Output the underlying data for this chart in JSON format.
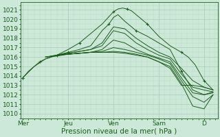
{
  "xlabel": "Pression niveau de la mer( hPa )",
  "bg_color": "#cce8d8",
  "grid_major_color": "#aaccb8",
  "grid_minor_color": "#bbddc8",
  "line_color": "#1a5c1a",
  "ylim": [
    1009.5,
    1021.8
  ],
  "yticks": [
    1010,
    1011,
    1012,
    1013,
    1014,
    1015,
    1016,
    1017,
    1018,
    1019,
    1020,
    1021
  ],
  "xlabels": [
    "Mer",
    "Jeu",
    "Ven",
    "Sam",
    "D"
  ],
  "xtick_positions": [
    0,
    2,
    4,
    6,
    8
  ],
  "xlim": [
    -0.1,
    8.6
  ],
  "lines": [
    {
      "x": [
        0.0,
        0.25,
        0.5,
        0.75,
        1.0,
        1.25,
        1.5,
        1.75,
        2.0,
        2.5,
        3.0,
        3.5,
        4.0,
        4.2,
        4.4,
        4.6,
        4.8,
        5.0,
        5.5,
        6.0,
        6.5,
        7.0,
        7.3,
        7.6,
        8.0,
        8.4
      ],
      "y": [
        1013.8,
        1014.5,
        1015.0,
        1015.5,
        1015.8,
        1016.0,
        1016.2,
        1016.5,
        1016.8,
        1017.5,
        1018.5,
        1019.5,
        1020.8,
        1021.1,
        1021.2,
        1021.1,
        1020.9,
        1020.5,
        1019.5,
        1018.2,
        1017.2,
        1016.5,
        1016.0,
        1015.2,
        1013.5,
        1012.5
      ],
      "marker": true,
      "marker_every": 3
    },
    {
      "x": [
        0.0,
        0.5,
        1.0,
        1.5,
        2.0,
        2.5,
        3.0,
        3.5,
        3.8,
        4.0,
        4.2,
        4.5,
        5.0,
        5.5,
        6.0,
        6.5,
        7.0,
        7.5,
        8.0,
        8.4
      ],
      "y": [
        1013.8,
        1015.0,
        1015.8,
        1016.2,
        1016.5,
        1016.8,
        1017.2,
        1018.8,
        1019.5,
        1020.2,
        1020.5,
        1019.8,
        1018.8,
        1018.2,
        1017.5,
        1016.8,
        1014.5,
        1012.5,
        1012.0,
        1012.3
      ],
      "marker": true,
      "marker_every": 4
    },
    {
      "x": [
        1.0,
        1.5,
        2.0,
        2.5,
        3.0,
        3.5,
        4.0,
        4.5,
        5.0,
        5.5,
        6.0,
        6.5,
        7.0,
        7.5,
        8.0,
        8.4
      ],
      "y": [
        1016.0,
        1016.2,
        1016.4,
        1016.6,
        1016.8,
        1017.5,
        1019.2,
        1019.0,
        1018.0,
        1017.2,
        1016.5,
        1016.0,
        1014.8,
        1013.5,
        1012.8,
        1012.5
      ],
      "marker": false
    },
    {
      "x": [
        1.0,
        1.5,
        2.0,
        2.5,
        3.0,
        3.5,
        4.0,
        4.5,
        5.0,
        5.5,
        6.0,
        6.5,
        7.0,
        7.5,
        8.0,
        8.4
      ],
      "y": [
        1016.0,
        1016.2,
        1016.4,
        1016.6,
        1016.8,
        1017.2,
        1018.8,
        1018.5,
        1017.5,
        1016.8,
        1016.2,
        1015.8,
        1014.2,
        1012.8,
        1012.5,
        1012.3
      ],
      "marker": false
    },
    {
      "x": [
        1.0,
        1.5,
        2.0,
        2.5,
        3.0,
        3.5,
        4.0,
        4.5,
        5.0,
        5.5,
        6.0,
        6.5,
        7.0,
        7.5,
        8.0,
        8.4
      ],
      "y": [
        1016.0,
        1016.1,
        1016.3,
        1016.4,
        1016.5,
        1016.8,
        1017.8,
        1017.5,
        1016.8,
        1016.3,
        1015.9,
        1015.5,
        1013.8,
        1012.2,
        1012.0,
        1012.2
      ],
      "marker": false
    },
    {
      "x": [
        1.5,
        2.0,
        2.5,
        3.0,
        3.5,
        4.0,
        4.5,
        5.0,
        5.5,
        6.0,
        6.5,
        7.0,
        7.5,
        8.0,
        8.4
      ],
      "y": [
        1016.2,
        1016.3,
        1016.4,
        1016.5,
        1016.6,
        1017.0,
        1016.8,
        1016.5,
        1016.2,
        1015.8,
        1015.3,
        1013.5,
        1011.8,
        1011.2,
        1012.0
      ],
      "marker": false
    },
    {
      "x": [
        1.5,
        2.0,
        2.5,
        3.0,
        3.5,
        4.0,
        4.5,
        5.0,
        5.5,
        6.0,
        6.5,
        7.0,
        7.5,
        8.0,
        8.4
      ],
      "y": [
        1016.2,
        1016.3,
        1016.4,
        1016.5,
        1016.5,
        1016.6,
        1016.5,
        1016.3,
        1016.0,
        1015.5,
        1015.0,
        1013.2,
        1010.8,
        1010.5,
        1012.0
      ],
      "marker": false
    },
    {
      "x": [
        1.5,
        2.0,
        2.5,
        3.0,
        3.5,
        4.0,
        4.5,
        5.0,
        5.5,
        6.0,
        6.5,
        7.0,
        7.5,
        8.0,
        8.4
      ],
      "y": [
        1016.2,
        1016.3,
        1016.4,
        1016.5,
        1016.5,
        1016.5,
        1016.4,
        1016.2,
        1016.0,
        1015.5,
        1014.8,
        1013.0,
        1013.0,
        1012.8,
        1012.5
      ],
      "marker": false
    }
  ],
  "xlabel_fontsize": 7.5,
  "tick_fontsize": 6.5
}
